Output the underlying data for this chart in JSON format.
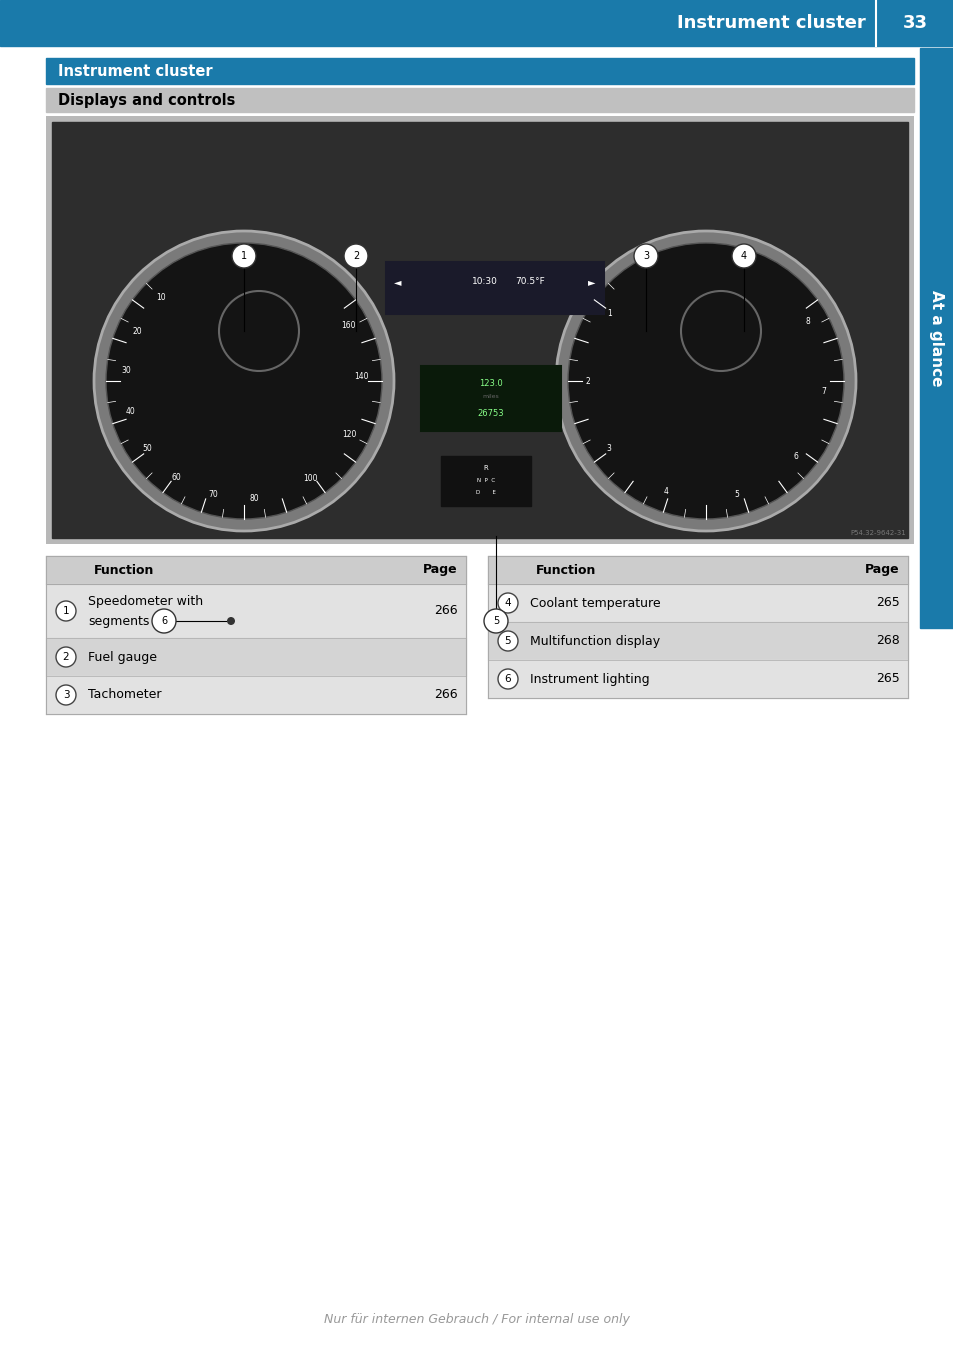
{
  "page_title": "Instrument cluster",
  "page_number": "33",
  "header_bg_color": "#1a7aaa",
  "header_text_color": "#ffffff",
  "section_title_1": "Instrument cluster",
  "section_title_2": "Displays and controls",
  "section2_bg_color": "#c0c0c0",
  "sidebar_text": "At a glance",
  "sidebar_bg_color": "#1a7aaa",
  "sidebar_text_color": "#ffffff",
  "table_left": {
    "rows": [
      {
        "num": "1",
        "function": "Speedometer with",
        "function2": "segments",
        "page": "266"
      },
      {
        "num": "2",
        "function": "Fuel gauge",
        "function2": "",
        "page": ""
      },
      {
        "num": "3",
        "function": "Tachometer",
        "function2": "",
        "page": "266"
      }
    ]
  },
  "table_right": {
    "rows": [
      {
        "num": "4",
        "function": "Coolant temperature",
        "function2": "",
        "page": "265"
      },
      {
        "num": "5",
        "function": "Multifunction display",
        "function2": "",
        "page": "268"
      },
      {
        "num": "6",
        "function": "Instrument lighting",
        "function2": "",
        "page": "265"
      }
    ]
  },
  "footer_text": "Nur für internen Gebrauch / For internal use only",
  "page_bg": "#ffffff",
  "img_bg": "#b8b8b8",
  "img_dark_bg": "#2d2d2d",
  "gauge_face": "#111111",
  "gauge_edge": "#888888"
}
